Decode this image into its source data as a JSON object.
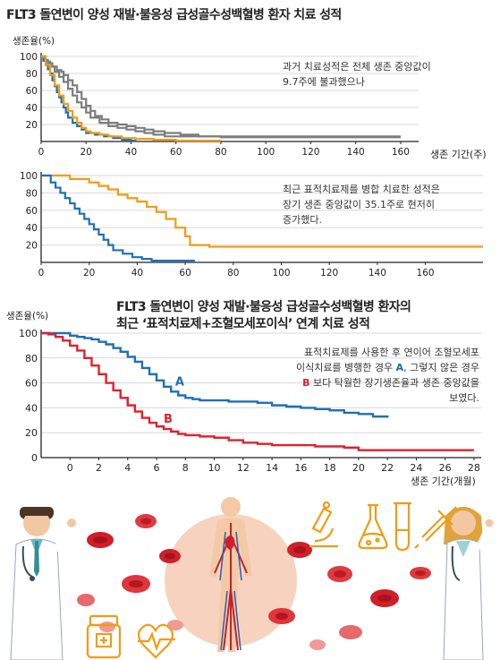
{
  "colors": {
    "blue": "#1f6fb5",
    "orange": "#f29b14",
    "gray": "#7d7d7d",
    "red": "#e0202e",
    "axis": "#222222"
  },
  "chart_data": [
    {
      "type": "line",
      "title": "FLT3 돌연변이 양성 재발·불응성 급성골수성백혈병 환자 치료 성적",
      "ylabel": "생존율(%)",
      "xlabel": "생존 기간(주)",
      "ylim": [
        0,
        100
      ],
      "xlim": [
        0,
        168
      ],
      "x_ticks": [
        0,
        20,
        40,
        60,
        80,
        100,
        120,
        140,
        160
      ],
      "y_ticks": [
        20,
        40,
        60,
        80,
        100
      ],
      "note": [
        "과거 치료성적은 전체 생존 중앙값이",
        "9.7주에 불과했으나"
      ],
      "series": [
        {
          "color": "gray",
          "x": [
            0,
            2,
            3,
            5,
            7,
            9,
            10,
            12,
            14,
            16,
            18,
            20,
            22,
            24,
            27,
            30,
            34,
            38,
            42,
            46,
            50,
            55,
            62,
            70,
            80,
            90,
            100,
            110,
            120,
            130,
            140,
            160
          ],
          "y": [
            100,
            96,
            92,
            88,
            84,
            82,
            78,
            72,
            66,
            58,
            50,
            42,
            36,
            30,
            26,
            22,
            20,
            18,
            16,
            14,
            12,
            10,
            8,
            6,
            5,
            5,
            5,
            5,
            5,
            5,
            5,
            5
          ]
        },
        {
          "color": "gray",
          "x": [
            0,
            2,
            4,
            6,
            8,
            10,
            12,
            14,
            16,
            18,
            20,
            22,
            26,
            30,
            34,
            38,
            42,
            46,
            50,
            55,
            62,
            70,
            80,
            100,
            120,
            140,
            160
          ],
          "y": [
            100,
            94,
            88,
            82,
            76,
            70,
            62,
            54,
            46,
            40,
            34,
            28,
            22,
            18,
            16,
            14,
            12,
            10,
            8,
            6,
            6,
            6,
            6,
            6,
            6,
            6,
            6
          ]
        },
        {
          "color": "blue",
          "x": [
            0,
            1,
            2,
            3,
            4,
            5,
            6,
            7,
            8,
            9,
            10,
            11,
            12,
            14,
            16,
            18,
            20,
            24,
            28,
            32,
            36,
            40,
            42
          ],
          "y": [
            100,
            95,
            90,
            85,
            80,
            72,
            65,
            58,
            52,
            46,
            40,
            34,
            28,
            22,
            18,
            14,
            10,
            8,
            6,
            4,
            2,
            1,
            0
          ]
        },
        {
          "color": "orange",
          "x": [
            0,
            2,
            4,
            6,
            8,
            10,
            12,
            14,
            16,
            18,
            20,
            22,
            26,
            30,
            36,
            42,
            50,
            60,
            70,
            80
          ],
          "y": [
            100,
            90,
            78,
            66,
            54,
            44,
            36,
            28,
            22,
            16,
            12,
            10,
            8,
            6,
            4,
            3,
            2,
            1,
            1,
            1
          ]
        }
      ]
    },
    {
      "type": "line",
      "ylim": [
        0,
        100
      ],
      "xlim": [
        0,
        184
      ],
      "x_ticks": [
        0,
        20,
        40,
        60,
        80,
        100,
        120,
        140,
        160
      ],
      "y_ticks": [
        20,
        40,
        60,
        80,
        100
      ],
      "note": [
        "최근 표적치료제를 병합 치료한 성적은",
        "장기 생존 중앙값이 35.1주로 현저히",
        "증가했다."
      ],
      "series": [
        {
          "color": "orange",
          "x": [
            0,
            10,
            12,
            16,
            20,
            24,
            28,
            32,
            36,
            40,
            44,
            48,
            52,
            56,
            60,
            62,
            70,
            80,
            100,
            120,
            140,
            160,
            184
          ],
          "y": [
            100,
            100,
            96,
            96,
            92,
            88,
            84,
            78,
            74,
            70,
            64,
            58,
            50,
            40,
            30,
            20,
            18,
            18,
            18,
            18,
            18,
            18,
            18
          ]
        },
        {
          "color": "blue",
          "x": [
            0,
            4,
            6,
            8,
            10,
            12,
            14,
            16,
            18,
            20,
            22,
            24,
            26,
            28,
            30,
            34,
            38,
            42,
            46,
            50,
            55,
            60,
            64
          ],
          "y": [
            100,
            92,
            86,
            80,
            74,
            68,
            62,
            56,
            50,
            44,
            38,
            32,
            26,
            20,
            14,
            10,
            6,
            4,
            2,
            2,
            2,
            2,
            2
          ]
        }
      ]
    },
    {
      "type": "line",
      "title_lines": [
        "FLT3 돌연변이 양성 재발·불응성 급성골수성백혈병 환자의",
        "최근 ‘표적치료제+조혈모세포이식’ 연계 치료 성적"
      ],
      "ylabel": "생존율(%)",
      "xlabel": "생존 기간(개월)",
      "ylim": [
        0,
        100
      ],
      "xlim": [
        -2,
        28.5
      ],
      "x_ticks": [
        0,
        2,
        4,
        6,
        8,
        10,
        12,
        14,
        16,
        18,
        20,
        22,
        24,
        26,
        28
      ],
      "y_ticks": [
        0,
        20,
        40,
        60,
        80,
        100
      ],
      "note_lines": [
        [
          {
            "t": "표적치료제를 사용한 후 연이어 조혈모세포"
          }
        ],
        [
          {
            "t": "이식치료를 병행한 경우 "
          },
          {
            "t": "A",
            "c": "a"
          },
          {
            "t": ", 그렇지 않은 경우"
          }
        ],
        [
          {
            "t": "B",
            "c": "b"
          },
          {
            "t": " 보다 탁월한 장기생존율과 생존 중앙값을"
          }
        ],
        [
          {
            "t": "보였다."
          }
        ]
      ],
      "series": [
        {
          "name": "A",
          "color": "blue",
          "x": [
            -2,
            -1,
            0,
            0.5,
            1,
            1.5,
            2,
            2.5,
            3,
            3.5,
            4,
            4.5,
            5,
            5.5,
            6,
            6.5,
            7,
            7.5,
            8,
            8.5,
            9,
            10,
            11,
            12,
            13,
            14,
            15,
            16,
            17,
            18,
            19,
            20,
            21,
            22
          ],
          "y": [
            100,
            100,
            98,
            97,
            96,
            95,
            93,
            91,
            88,
            85,
            81,
            77,
            72,
            67,
            62,
            57,
            53,
            50,
            48,
            47,
            46,
            46,
            45,
            45,
            44,
            42,
            41,
            40,
            39,
            38,
            36,
            35,
            33,
            32
          ]
        },
        {
          "name": "B",
          "color": "red",
          "x": [
            -2,
            -1.5,
            -1,
            -0.5,
            0,
            0.5,
            1,
            1.5,
            2,
            2.5,
            3,
            3.5,
            4,
            4.5,
            5,
            5.5,
            6,
            6.5,
            7,
            7.5,
            8,
            9,
            10,
            11,
            12,
            13,
            14,
            15,
            16,
            17,
            18,
            19,
            20,
            21,
            22,
            23,
            24,
            25,
            26,
            27,
            28
          ],
          "y": [
            100,
            99,
            97,
            94,
            90,
            86,
            80,
            74,
            67,
            60,
            54,
            48,
            42,
            37,
            32,
            28,
            25,
            23,
            21,
            19,
            18,
            17,
            16,
            14,
            12,
            11,
            10,
            10,
            10,
            9,
            9,
            8,
            6,
            6,
            6,
            6,
            6,
            6,
            6,
            6,
            6
          ]
        }
      ]
    }
  ]
}
